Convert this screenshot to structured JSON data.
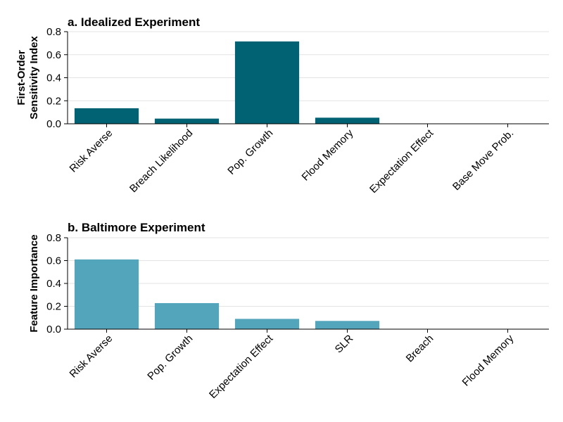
{
  "chart_data": [
    {
      "type": "bar",
      "title": "a. Idealized Experiment",
      "ylabel_lines": [
        "First-Order",
        "Sensitivity Index"
      ],
      "categories": [
        "Risk Averse",
        "Breach Likelihood",
        "Pop. Growth",
        "Flood Memory",
        "Expectation Effect",
        "Base Move Prob."
      ],
      "values": [
        0.135,
        0.045,
        0.715,
        0.053,
        0.0,
        0.003
      ],
      "ylim": [
        0,
        0.8
      ],
      "yticks": [
        "0.0",
        "0.2",
        "0.4",
        "0.6",
        "0.8"
      ],
      "color": "#006272",
      "grid": true
    },
    {
      "type": "bar",
      "title": "b. Baltimore Experiment",
      "ylabel_lines": [
        "Feature Importance"
      ],
      "categories": [
        "Risk Averse",
        "Pop. Growth",
        "Expectation Effect",
        "SLR",
        "Breach",
        "Flood Memory"
      ],
      "values": [
        0.61,
        0.228,
        0.09,
        0.072,
        0.0,
        0.0
      ],
      "ylim": [
        0,
        0.8
      ],
      "yticks": [
        "0.0",
        "0.2",
        "0.4",
        "0.6",
        "0.8"
      ],
      "color": "#52a5bb",
      "grid": true
    }
  ]
}
